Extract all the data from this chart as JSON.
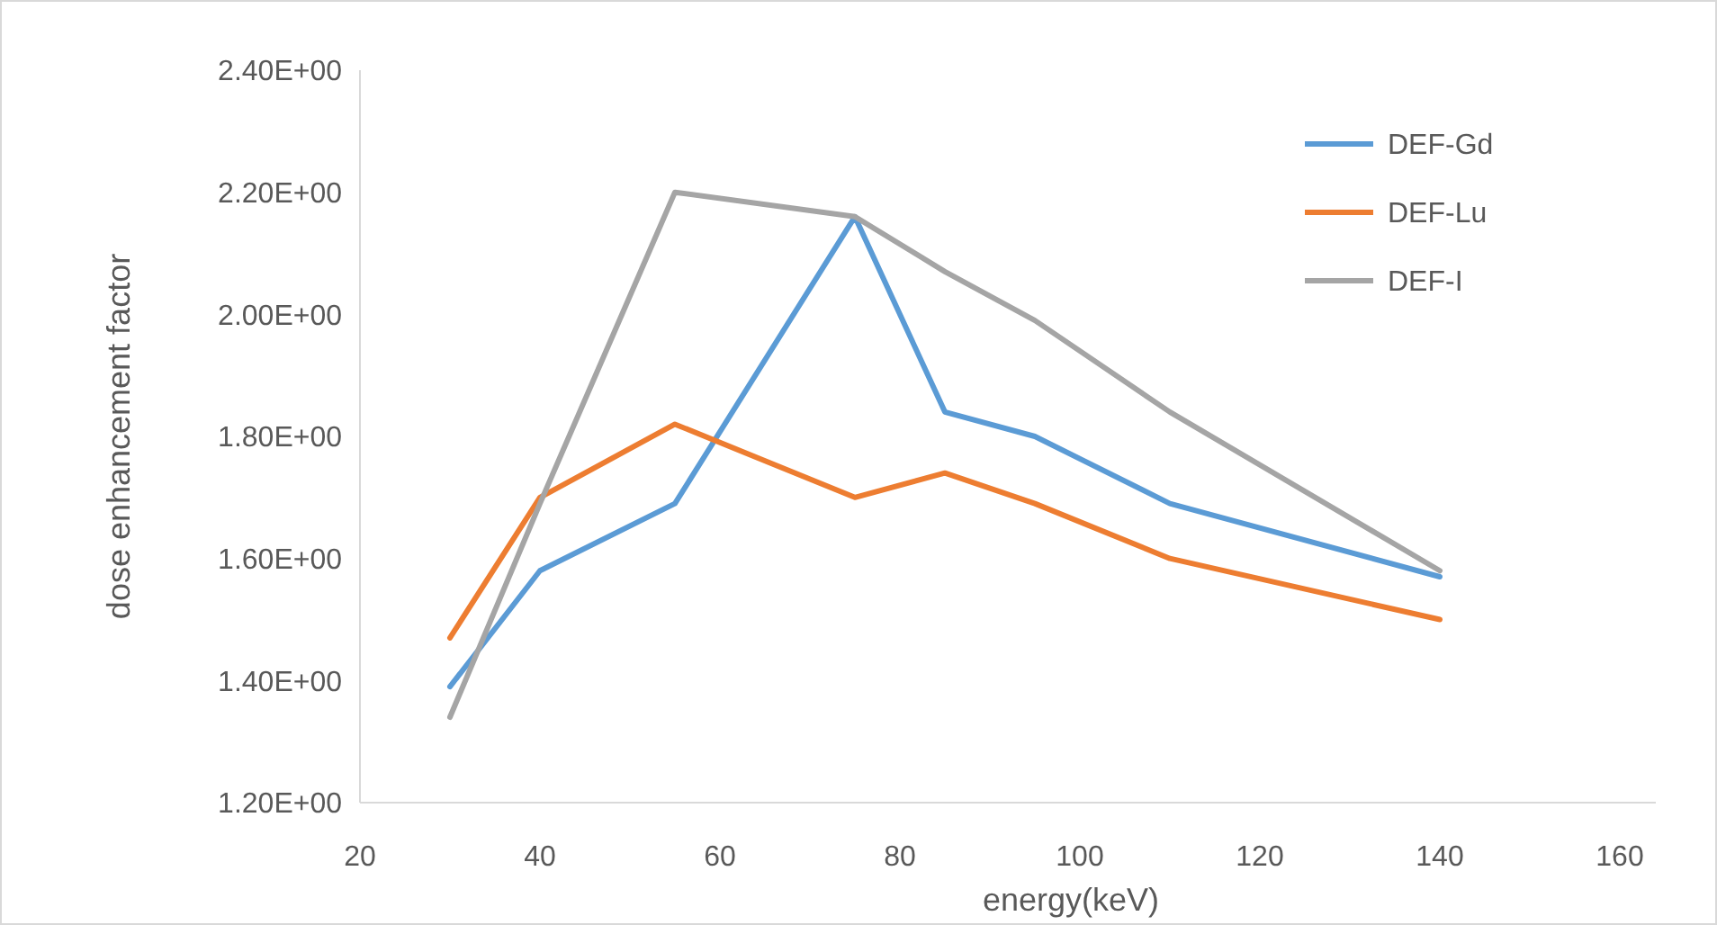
{
  "chart_data": {
    "type": "line",
    "xlabel": "energy(keV)",
    "ylabel": "dose enhancement factor",
    "x": [
      30,
      40,
      55,
      75,
      85,
      95,
      110,
      140
    ],
    "series": [
      {
        "name": "DEF-Gd",
        "color": "#5b9bd5",
        "values": [
          1.39,
          1.58,
          1.69,
          2.16,
          1.84,
          1.8,
          1.69,
          1.57
        ]
      },
      {
        "name": "DEF-Lu",
        "color": "#ed7d31",
        "values": [
          1.47,
          1.7,
          1.82,
          1.7,
          1.74,
          1.69,
          1.6,
          1.5
        ]
      },
      {
        "name": "DEF-I",
        "color": "#a5a5a5",
        "values": [
          1.34,
          1.69,
          2.2,
          2.16,
          2.07,
          1.99,
          1.84,
          1.58
        ]
      }
    ],
    "xlim": [
      20,
      164
    ],
    "xticks": [
      20,
      40,
      60,
      80,
      100,
      120,
      140,
      160
    ],
    "ylim": [
      1.2,
      2.4
    ],
    "yticks": [
      {
        "value": 1.2,
        "label": "1.20E+00"
      },
      {
        "value": 1.4,
        "label": "1.40E+00"
      },
      {
        "value": 1.6,
        "label": "1.60E+00"
      },
      {
        "value": 1.8,
        "label": "1.80E+00"
      },
      {
        "value": 2.0,
        "label": "2.00E+00"
      },
      {
        "value": 2.2,
        "label": "2.20E+00"
      },
      {
        "value": 2.4,
        "label": "2.40E+00"
      }
    ],
    "legend": "top right",
    "marker": "none",
    "line_style": "solid"
  }
}
